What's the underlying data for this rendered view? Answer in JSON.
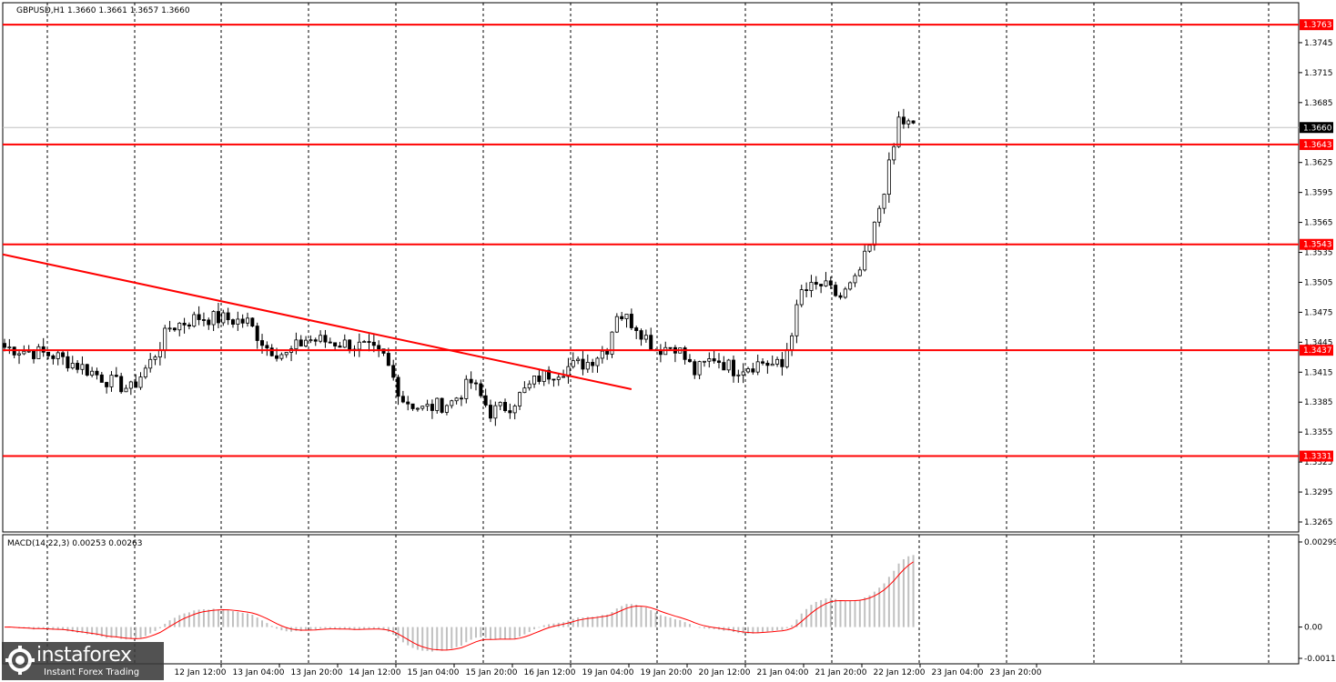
{
  "header": {
    "symbol_text": "GBPUSD,H1  1.3660 1.3661 1.3657 1.3660"
  },
  "macd_header": "MACD(14,22,3) 0.00253 0.00263",
  "brand": {
    "name": "instaforex",
    "tagline": "Instant Forex Trading"
  },
  "colors": {
    "level": "#ff0000",
    "candle": "#000000",
    "grid": "#000000",
    "histogram": "#c0c0c0",
    "signal": "#ff0000"
  },
  "chart_data": [
    {
      "type": "candlestick",
      "price_axis": {
        "ylim": [
          1.3255,
          1.3785
        ],
        "tick_labels": [
          "1.3745",
          "1.3715",
          "1.3685",
          "1.3625",
          "1.3595",
          "1.3565",
          "1.3535",
          "1.3505",
          "1.3475",
          "1.3445",
          "1.3415",
          "1.3385",
          "1.3355",
          "1.3325",
          "1.3295",
          "1.3265"
        ]
      },
      "current_price": "1.3660",
      "levels": [
        {
          "label": "1.3763",
          "value": 1.3763
        },
        {
          "label": "1.3643",
          "value": 1.3643
        },
        {
          "label": "1.3543",
          "value": 1.3543
        },
        {
          "label": "1.3437",
          "value": 1.3437
        },
        {
          "label": "1.3331",
          "value": 1.3331
        }
      ],
      "trendline": {
        "from": [
          0,
          1.3533
        ],
        "to": [
          129,
          1.3398
        ]
      },
      "time_axis": {
        "labels": [
          "12 Jan 12:00",
          "13 Jan 04:00",
          "13 Jan 20:00",
          "14 Jan 12:00",
          "15 Jan 04:00",
          "15 Jan 20:00",
          "16 Jan 12:00",
          "19 Jan 04:00",
          "19 Jan 20:00",
          "20 Jan 12:00",
          "21 Jan 04:00",
          "21 Jan 20:00",
          "22 Jan 12:00",
          "23 Jan 04:00",
          "23 Jan 20:00"
        ]
      },
      "close_path": [
        [
          0,
          1.344
        ],
        [
          10,
          1.3432
        ],
        [
          16,
          1.342
        ],
        [
          22,
          1.3405
        ],
        [
          26,
          1.3398
        ],
        [
          30,
          1.3425
        ],
        [
          34,
          1.346
        ],
        [
          40,
          1.347
        ],
        [
          46,
          1.3468
        ],
        [
          50,
          1.3465
        ],
        [
          54,
          1.344
        ],
        [
          58,
          1.3432
        ],
        [
          62,
          1.3448
        ],
        [
          68,
          1.3445
        ],
        [
          74,
          1.344
        ],
        [
          78,
          1.343
        ],
        [
          82,
          1.3388
        ],
        [
          86,
          1.3378
        ],
        [
          92,
          1.3385
        ],
        [
          96,
          1.3405
        ],
        [
          100,
          1.3375
        ],
        [
          104,
          1.3382
        ],
        [
          110,
          1.341
        ],
        [
          116,
          1.342
        ],
        [
          120,
          1.3425
        ],
        [
          124,
          1.344
        ],
        [
          126,
          1.3475
        ],
        [
          130,
          1.3462
        ],
        [
          134,
          1.3438
        ],
        [
          138,
          1.3442
        ],
        [
          142,
          1.3415
        ],
        [
          146,
          1.343
        ],
        [
          150,
          1.3418
        ],
        [
          156,
          1.3425
        ],
        [
          160,
          1.342
        ],
        [
          164,
          1.3495
        ],
        [
          168,
          1.3502
        ],
        [
          172,
          1.349
        ],
        [
          175,
          1.3505
        ],
        [
          178,
          1.354
        ],
        [
          181,
          1.36
        ],
        [
          183,
          1.364
        ],
        [
          184,
          1.3668
        ],
        [
          187,
          1.366
        ]
      ]
    },
    {
      "type": "macd",
      "name": "MACD(14,22,3)",
      "ylim": [
        -0.0011,
        0.00299
      ],
      "tick_labels": [
        "0.00299",
        "0.00",
        "-0.0011"
      ],
      "values": {
        "macd": 0.00253,
        "signal": 0.00263
      }
    }
  ]
}
